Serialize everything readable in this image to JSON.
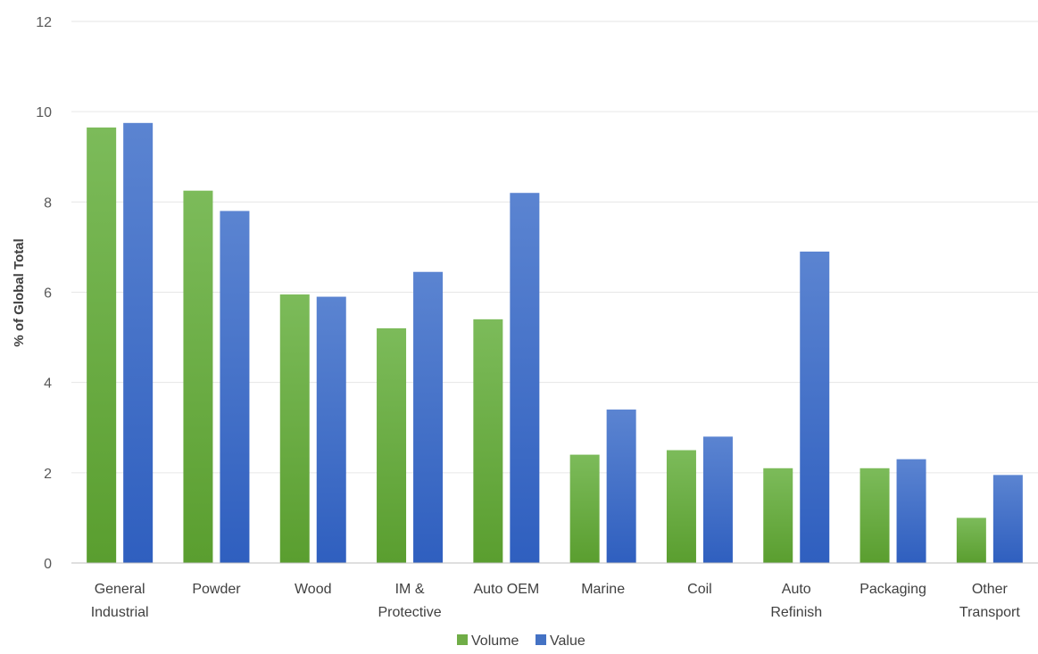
{
  "chart_data": {
    "type": "bar",
    "title": "",
    "xlabel": "",
    "ylabel": "% of Global Total",
    "ylim": [
      0,
      12
    ],
    "yticks": [
      0,
      2,
      4,
      6,
      8,
      10,
      12
    ],
    "grid": true,
    "legend_position": "bottom",
    "categories": [
      [
        "General",
        "Industrial"
      ],
      [
        "Powder"
      ],
      [
        "Wood"
      ],
      [
        "IM &",
        "Protective"
      ],
      [
        "Auto OEM"
      ],
      [
        "Marine"
      ],
      [
        "Coil"
      ],
      [
        "Auto",
        "Refinish"
      ],
      [
        "Packaging"
      ],
      [
        "Other",
        "Transport"
      ]
    ],
    "series": [
      {
        "name": "Volume",
        "color": "#70ad47",
        "values": [
          9.65,
          8.25,
          5.95,
          5.2,
          5.4,
          2.4,
          2.5,
          2.1,
          2.1,
          1.0
        ]
      },
      {
        "name": "Value",
        "color": "#4472c4",
        "values": [
          9.75,
          7.8,
          5.9,
          6.45,
          8.2,
          3.4,
          2.8,
          6.9,
          2.3,
          1.95
        ]
      }
    ]
  }
}
